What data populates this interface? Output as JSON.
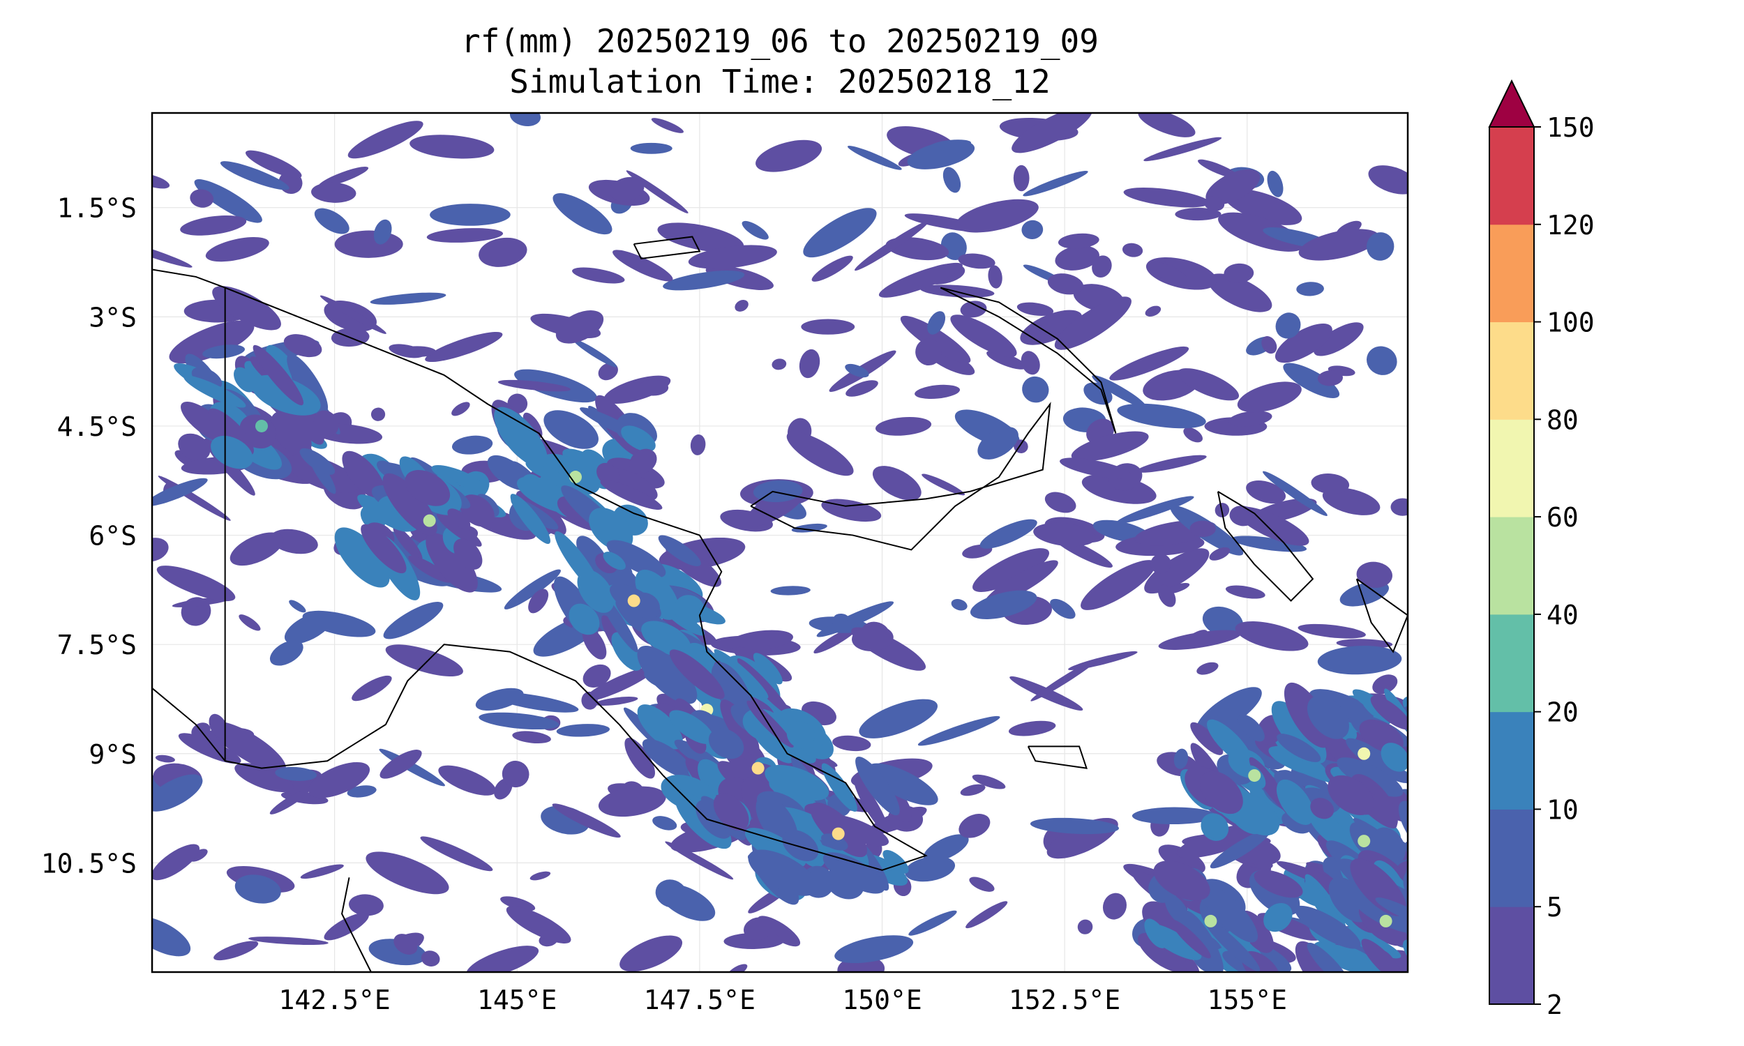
{
  "title": {
    "line1": "rf(mm) 20250219_06 to 20250219_09",
    "line2": "Simulation Time: 20250218_12"
  },
  "map": {
    "lon_range": [
      140.0,
      157.2
    ],
    "lat_range": [
      -12.0,
      -0.2
    ],
    "lat_ticks": [
      "1.5°S",
      "3°S",
      "4.5°S",
      "6°S",
      "7.5°S",
      "9°S",
      "10.5°S"
    ],
    "lat_values": [
      -1.5,
      -3.0,
      -4.5,
      -6.0,
      -7.5,
      -9.0,
      -10.5
    ],
    "lon_ticks": [
      "142.5°E",
      "145°E",
      "147.5°E",
      "150°E",
      "152.5°E",
      "155°E"
    ],
    "lon_values": [
      142.5,
      145.0,
      147.5,
      150.0,
      152.5,
      155.0
    ],
    "grid": true,
    "features": [
      "coastlines",
      "Indonesia–PNG border at 141°E"
    ]
  },
  "colorbar": {
    "labels": [
      "2",
      "5",
      "10",
      "20",
      "40",
      "60",
      "80",
      "100",
      "120",
      "150"
    ],
    "bin_colors": [
      "#5e4fa2",
      "#4a62ad",
      "#3a82bb",
      "#63bfa8",
      "#b9e2a0",
      "#f1f6b0",
      "#fddc8a",
      "#f99d59",
      "#d53f4e"
    ],
    "extend_color": "#9e0142",
    "extend": "max"
  },
  "chart_data": {
    "type": "heatmap",
    "variable": "rf(mm)",
    "period": "20250219_06 to 20250219_09",
    "levels": [
      2,
      5,
      10,
      20,
      40,
      60,
      80,
      100,
      120,
      150
    ],
    "colormap": "Spectral_r",
    "rain_features": [
      {
        "lon": 141.5,
        "lat": -4.5,
        "peak_mm": 20
      },
      {
        "lon": 143.8,
        "lat": -5.8,
        "peak_mm": 40
      },
      {
        "lon": 145.8,
        "lat": -5.2,
        "peak_mm": 40
      },
      {
        "lon": 146.6,
        "lat": -6.9,
        "peak_mm": 80
      },
      {
        "lon": 147.6,
        "lat": -8.4,
        "peak_mm": 60
      },
      {
        "lon": 148.3,
        "lat": -9.2,
        "peak_mm": 80
      },
      {
        "lon": 149.4,
        "lat": -10.1,
        "peak_mm": 80
      },
      {
        "lon": 155.1,
        "lat": -9.3,
        "peak_mm": 40
      },
      {
        "lon": 156.6,
        "lat": -9.0,
        "peak_mm": 60
      },
      {
        "lon": 156.6,
        "lat": -10.2,
        "peak_mm": 40
      },
      {
        "lon": 156.9,
        "lat": -11.3,
        "peak_mm": 40
      },
      {
        "lon": 154.5,
        "lat": -11.3,
        "peak_mm": 40
      }
    ]
  }
}
